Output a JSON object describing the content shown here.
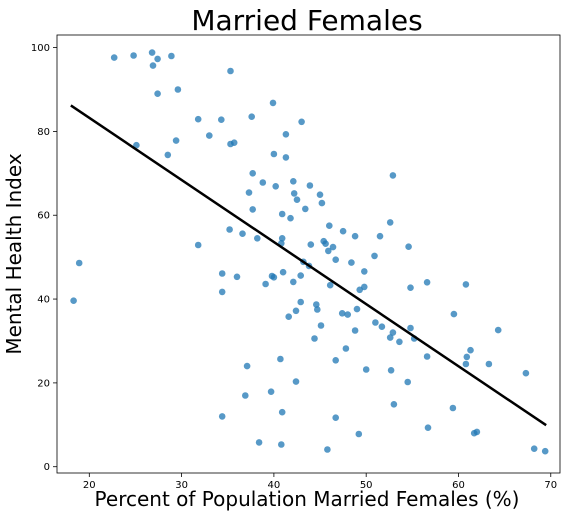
{
  "chart_data": {
    "type": "scatter",
    "title": "Married Females",
    "xlabel": "Percent of Population Married Females (%)",
    "ylabel": "Mental Health Index",
    "xlim": [
      16.5,
      71
    ],
    "ylim": [
      -1.5,
      103
    ],
    "xticks": [
      20,
      30,
      40,
      50,
      60,
      70
    ],
    "yticks": [
      0,
      20,
      40,
      60,
      80,
      100
    ],
    "grid": false,
    "point_color": "#1f77b4",
    "trendline": {
      "x": [
        18.0,
        69.5
      ],
      "y": [
        86.2,
        9.9
      ],
      "color": "#000000"
    },
    "points": [
      [
        22.7,
        97.6
      ],
      [
        24.8,
        98.1
      ],
      [
        26.8,
        98.8
      ],
      [
        27.4,
        97.3
      ],
      [
        28.9,
        98.0
      ],
      [
        26.9,
        95.7
      ],
      [
        35.3,
        94.4
      ],
      [
        27.4,
        89.0
      ],
      [
        29.6,
        90.0
      ],
      [
        39.9,
        86.8
      ],
      [
        31.8,
        82.9
      ],
      [
        34.3,
        82.8
      ],
      [
        33.0,
        79.0
      ],
      [
        43.0,
        82.3
      ],
      [
        37.6,
        83.5
      ],
      [
        41.3,
        79.3
      ],
      [
        25.1,
        76.7
      ],
      [
        29.4,
        77.8
      ],
      [
        35.3,
        77.0
      ],
      [
        35.7,
        77.3
      ],
      [
        28.5,
        74.4
      ],
      [
        40.0,
        74.6
      ],
      [
        41.3,
        73.8
      ],
      [
        37.7,
        70.0
      ],
      [
        52.9,
        69.5
      ],
      [
        38.8,
        67.8
      ],
      [
        40.2,
        66.9
      ],
      [
        37.3,
        65.4
      ],
      [
        42.1,
        68.1
      ],
      [
        43.9,
        67.1
      ],
      [
        42.2,
        65.2
      ],
      [
        45.0,
        64.9
      ],
      [
        42.5,
        63.7
      ],
      [
        45.2,
        62.9
      ],
      [
        37.7,
        61.4
      ],
      [
        43.4,
        61.5
      ],
      [
        40.9,
        60.3
      ],
      [
        41.8,
        59.3
      ],
      [
        46.0,
        57.5
      ],
      [
        52.6,
        58.3
      ],
      [
        47.5,
        56.2
      ],
      [
        35.2,
        56.6
      ],
      [
        36.6,
        55.6
      ],
      [
        38.2,
        54.5
      ],
      [
        48.8,
        55.0
      ],
      [
        51.5,
        55.0
      ],
      [
        40.9,
        54.5
      ],
      [
        40.8,
        53.3
      ],
      [
        45.4,
        53.8
      ],
      [
        45.6,
        53.2
      ],
      [
        44.0,
        53.0
      ],
      [
        46.4,
        52.4
      ],
      [
        54.6,
        52.5
      ],
      [
        31.8,
        52.9
      ],
      [
        45.9,
        51.5
      ],
      [
        50.9,
        50.3
      ],
      [
        43.2,
        48.9
      ],
      [
        46.7,
        49.4
      ],
      [
        48.4,
        48.7
      ],
      [
        43.8,
        47.9
      ],
      [
        18.9,
        48.6
      ],
      [
        34.4,
        46.1
      ],
      [
        41.0,
        46.4
      ],
      [
        49.8,
        46.6
      ],
      [
        36.0,
        45.3
      ],
      [
        39.8,
        45.5
      ],
      [
        40.0,
        45.2
      ],
      [
        42.9,
        45.6
      ],
      [
        42.1,
        44.1
      ],
      [
        56.6,
        44.0
      ],
      [
        60.8,
        43.5
      ],
      [
        39.1,
        43.6
      ],
      [
        46.1,
        43.3
      ],
      [
        49.8,
        42.9
      ],
      [
        49.3,
        42.2
      ],
      [
        54.8,
        42.7
      ],
      [
        34.4,
        41.7
      ],
      [
        18.3,
        39.6
      ],
      [
        42.9,
        39.3
      ],
      [
        44.6,
        38.7
      ],
      [
        49.0,
        37.6
      ],
      [
        42.4,
        37.2
      ],
      [
        44.7,
        37.5
      ],
      [
        47.4,
        36.6
      ],
      [
        48.0,
        36.3
      ],
      [
        59.5,
        36.4
      ],
      [
        41.6,
        35.8
      ],
      [
        51.0,
        34.4
      ],
      [
        51.7,
        33.4
      ],
      [
        45.1,
        33.7
      ],
      [
        48.8,
        32.5
      ],
      [
        52.9,
        32.0
      ],
      [
        54.8,
        33.1
      ],
      [
        64.3,
        32.6
      ],
      [
        44.4,
        30.6
      ],
      [
        52.6,
        30.8
      ],
      [
        53.6,
        29.8
      ],
      [
        55.2,
        30.6
      ],
      [
        47.8,
        28.2
      ],
      [
        61.3,
        27.8
      ],
      [
        60.9,
        26.2
      ],
      [
        40.7,
        25.7
      ],
      [
        46.7,
        25.4
      ],
      [
        56.6,
        26.3
      ],
      [
        37.1,
        24.0
      ],
      [
        63.3,
        24.5
      ],
      [
        60.8,
        24.5
      ],
      [
        50.0,
        23.2
      ],
      [
        52.7,
        23.0
      ],
      [
        67.3,
        22.3
      ],
      [
        42.4,
        20.3
      ],
      [
        54.5,
        20.2
      ],
      [
        39.7,
        17.9
      ],
      [
        36.9,
        17.0
      ],
      [
        53.0,
        14.9
      ],
      [
        59.4,
        14.0
      ],
      [
        40.9,
        13.0
      ],
      [
        34.4,
        12.0
      ],
      [
        46.7,
        11.7
      ],
      [
        56.7,
        9.3
      ],
      [
        62.0,
        8.3
      ],
      [
        61.7,
        8.0
      ],
      [
        49.2,
        7.8
      ],
      [
        38.4,
        5.8
      ],
      [
        40.8,
        5.3
      ],
      [
        45.8,
        4.1
      ],
      [
        68.2,
        4.3
      ],
      [
        69.4,
        3.7
      ]
    ]
  }
}
